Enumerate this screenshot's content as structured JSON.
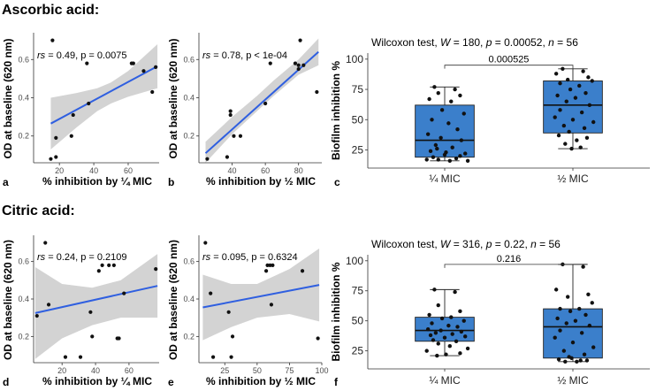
{
  "sections": [
    {
      "title": "Ascorbic acid:"
    },
    {
      "title": "Citric acid:"
    }
  ],
  "colors": {
    "line": "#2f5fe0",
    "band": "#d3d3d3",
    "box_fill": "#3b7fcb",
    "point": "#111111",
    "axis": "#333333",
    "tick_text": "#4d4d4d"
  },
  "chart_data": [
    {
      "id": "a",
      "type": "scatter",
      "panel_label": "a",
      "xlabel": "% inhibition by ¼ MIC",
      "ylabel": "OD at baseline (620 nm)",
      "xlim": [
        5,
        78
      ],
      "ylim": [
        0.06,
        0.74
      ],
      "xticks": [
        20,
        40,
        60
      ],
      "yticks": [
        0.2,
        0.4,
        0.6
      ],
      "xtick_labels": [
        "20",
        "40",
        "60"
      ],
      "ytick_labels": [
        "0.2",
        "0.4",
        "0.6"
      ],
      "stat_rs": "rs",
      "stat_text": " = 0.49, p = 0.0075",
      "points": [
        [
          15,
          0.08
        ],
        [
          16,
          0.7
        ],
        [
          18,
          0.19
        ],
        [
          18,
          0.09
        ],
        [
          27,
          0.2
        ],
        [
          28,
          0.31
        ],
        [
          36,
          0.58
        ],
        [
          37,
          0.37
        ],
        [
          62,
          0.58
        ],
        [
          63,
          0.58
        ],
        [
          69,
          0.54
        ],
        [
          74,
          0.43
        ],
        [
          76,
          0.56
        ]
      ],
      "fit": {
        "x": [
          15,
          77
        ],
        "y": [
          0.265,
          0.565
        ]
      },
      "band_upper": [
        [
          15,
          0.4
        ],
        [
          30,
          0.425
        ],
        [
          42,
          0.45
        ],
        [
          50,
          0.48
        ],
        [
          60,
          0.54
        ],
        [
          77,
          0.68
        ]
      ],
      "band_lower": [
        [
          15,
          0.13
        ],
        [
          30,
          0.245
        ],
        [
          42,
          0.33
        ],
        [
          50,
          0.37
        ],
        [
          60,
          0.405
        ],
        [
          77,
          0.45
        ]
      ]
    },
    {
      "id": "b",
      "type": "scatter",
      "panel_label": "b",
      "xlabel": "% inhibition by ½ MIC",
      "ylabel": "OD at baseline (620 nm)",
      "xlim": [
        20,
        94
      ],
      "ylim": [
        0.06,
        0.74
      ],
      "xticks": [
        40,
        60,
        80
      ],
      "yticks": [
        0.2,
        0.4,
        0.6
      ],
      "xtick_labels": [
        "40",
        "60",
        "80"
      ],
      "ytick_labels": [
        "0.2",
        "0.4",
        "0.6"
      ],
      "stat_rs": "rs",
      "stat_text": " = 0.78, p < 1e-04",
      "points": [
        [
          25,
          0.08
        ],
        [
          37,
          0.09
        ],
        [
          39,
          0.31
        ],
        [
          39,
          0.33
        ],
        [
          41,
          0.2
        ],
        [
          45,
          0.2
        ],
        [
          60,
          0.37
        ],
        [
          63,
          0.58
        ],
        [
          78,
          0.58
        ],
        [
          80,
          0.57
        ],
        [
          80,
          0.55
        ],
        [
          81,
          0.7
        ],
        [
          83,
          0.57
        ],
        [
          91,
          0.43
        ]
      ],
      "fit": {
        "x": [
          24,
          92
        ],
        "y": [
          0.11,
          0.64
        ]
      },
      "band_upper": [
        [
          24,
          0.17
        ],
        [
          40,
          0.3
        ],
        [
          55,
          0.41
        ],
        [
          65,
          0.49
        ],
        [
          80,
          0.6
        ],
        [
          92,
          0.71
        ]
      ],
      "band_lower": [
        [
          24,
          0.05
        ],
        [
          40,
          0.21
        ],
        [
          55,
          0.33
        ],
        [
          65,
          0.41
        ],
        [
          80,
          0.52
        ],
        [
          92,
          0.57
        ]
      ]
    },
    {
      "id": "c",
      "type": "box",
      "panel_label": "c",
      "ylabel": "Biofilm inhibition %",
      "title_prefix": "Wilcoxon test, ",
      "title_W": "W",
      "title_W_val": " = 180, ",
      "title_p": "p",
      "title_p_val": " = 0.00052, ",
      "title_n": "n",
      "title_n_val": " = 56",
      "categories": [
        "¼ MIC",
        "½ MIC"
      ],
      "ylim": [
        10,
        105
      ],
      "yticks": [
        25,
        50,
        75,
        100
      ],
      "ytick_labels": [
        "25",
        "50",
        "75",
        "100"
      ],
      "boxes": [
        {
          "min": 16,
          "q1": 19,
          "median": 33,
          "q3": 62,
          "max": 77
        },
        {
          "min": 26,
          "q1": 39,
          "median": 62,
          "q3": 82,
          "max": 92
        }
      ],
      "bracket_label": "0.000525",
      "bracket_y": 95,
      "points": [
        [
          [
            0.92,
            77
          ],
          [
            1.08,
            75
          ],
          [
            0.95,
            72
          ],
          [
            1.12,
            70
          ],
          [
            0.88,
            67
          ],
          [
            1.05,
            65
          ],
          [
            0.98,
            58
          ],
          [
            1.15,
            55
          ],
          [
            0.9,
            50
          ],
          [
            1.03,
            47
          ],
          [
            1.1,
            42
          ],
          [
            0.87,
            38
          ],
          [
            0.97,
            35
          ],
          [
            1.13,
            33
          ],
          [
            0.93,
            29
          ],
          [
            1.06,
            27
          ],
          [
            0.89,
            24
          ],
          [
            1.16,
            22
          ],
          [
            1.0,
            21
          ],
          [
            0.91,
            19
          ],
          [
            1.09,
            18
          ],
          [
            0.95,
            17
          ],
          [
            1.04,
            16
          ],
          [
            1.18,
            16
          ],
          [
            0.86,
            17
          ],
          [
            1.12,
            20
          ],
          [
            1.01,
            23
          ],
          [
            0.94,
            26
          ]
        ],
        [
          [
            1.92,
            92
          ],
          [
            2.08,
            90
          ],
          [
            1.87,
            88
          ],
          [
            2.12,
            85
          ],
          [
            1.96,
            83
          ],
          [
            2.15,
            82
          ],
          [
            1.9,
            80
          ],
          [
            2.05,
            78
          ],
          [
            1.98,
            75
          ],
          [
            2.1,
            72
          ],
          [
            1.88,
            70
          ],
          [
            2.02,
            68
          ],
          [
            1.95,
            65
          ],
          [
            2.13,
            62
          ],
          [
            1.9,
            58
          ],
          [
            2.07,
            56
          ],
          [
            1.86,
            52
          ],
          [
            2.0,
            50
          ],
          [
            2.16,
            48
          ],
          [
            1.93,
            45
          ],
          [
            2.09,
            43
          ],
          [
            1.97,
            40
          ],
          [
            1.89,
            37
          ],
          [
            2.11,
            35
          ],
          [
            2.03,
            33
          ],
          [
            1.94,
            30
          ],
          [
            2.06,
            27
          ],
          [
            1.99,
            26
          ]
        ]
      ]
    },
    {
      "id": "d",
      "type": "scatter",
      "panel_label": "d",
      "xlabel": "% inhibition by ¼ MIC",
      "ylabel": "OD at baseline (620 nm)",
      "xlim": [
        3,
        78
      ],
      "ylim": [
        0.06,
        0.74
      ],
      "xticks": [
        20,
        40,
        60
      ],
      "yticks": [
        0.2,
        0.4,
        0.6
      ],
      "xtick_labels": [
        "20",
        "40",
        "60"
      ],
      "ytick_labels": [
        "0.2",
        "0.4",
        "0.6"
      ],
      "stat_rs": "rs",
      "stat_text": " = 0.24, p = 0.2109",
      "points": [
        [
          5,
          0.31
        ],
        [
          10,
          0.7
        ],
        [
          12,
          0.37
        ],
        [
          22,
          0.09
        ],
        [
          31,
          0.09
        ],
        [
          37,
          0.33
        ],
        [
          38,
          0.2
        ],
        [
          42,
          0.55
        ],
        [
          44,
          0.58
        ],
        [
          48,
          0.58
        ],
        [
          51,
          0.58
        ],
        [
          53,
          0.19
        ],
        [
          54,
          0.19
        ],
        [
          57,
          0.43
        ],
        [
          76,
          0.56
        ]
      ],
      "fit": {
        "x": [
          4,
          77
        ],
        "y": [
          0.325,
          0.47
        ]
      },
      "band_upper": [
        [
          4,
          0.57
        ],
        [
          20,
          0.48
        ],
        [
          38,
          0.46
        ],
        [
          55,
          0.5
        ],
        [
          77,
          0.64
        ]
      ],
      "band_lower": [
        [
          4,
          0.08
        ],
        [
          20,
          0.19
        ],
        [
          38,
          0.26
        ],
        [
          55,
          0.3
        ],
        [
          77,
          0.3
        ]
      ]
    },
    {
      "id": "e",
      "type": "scatter",
      "panel_label": "e",
      "xlabel": "% inhibition by ½ MIC",
      "ylabel": "OD at baseline (620 nm)",
      "xlim": [
        5,
        100
      ],
      "ylim": [
        0.06,
        0.74
      ],
      "xticks": [
        25,
        50,
        75,
        100
      ],
      "yticks": [
        0.2,
        0.4,
        0.6
      ],
      "xtick_labels": [
        "25",
        "50",
        "75",
        "100"
      ],
      "ytick_labels": [
        "0.2",
        "0.4",
        "0.6"
      ],
      "stat_rs": "rs",
      "stat_text": " = 0.095, p = 0.6324",
      "points": [
        [
          10,
          0.7
        ],
        [
          14,
          0.43
        ],
        [
          16,
          0.09
        ],
        [
          28,
          0.33
        ],
        [
          30,
          0.09
        ],
        [
          31,
          0.2
        ],
        [
          57,
          0.55
        ],
        [
          58,
          0.58
        ],
        [
          60,
          0.58
        ],
        [
          61,
          0.37
        ],
        [
          62,
          0.58
        ],
        [
          85,
          0.55
        ],
        [
          97,
          0.19
        ]
      ],
      "fit": {
        "x": [
          8,
          98
        ],
        "y": [
          0.355,
          0.475
        ]
      },
      "band_upper": [
        [
          8,
          0.53
        ],
        [
          30,
          0.48
        ],
        [
          50,
          0.48
        ],
        [
          75,
          0.56
        ],
        [
          98,
          0.67
        ]
      ],
      "band_lower": [
        [
          8,
          0.18
        ],
        [
          30,
          0.25
        ],
        [
          50,
          0.3
        ],
        [
          75,
          0.32
        ],
        [
          98,
          0.28
        ]
      ]
    },
    {
      "id": "f",
      "type": "box",
      "panel_label": "f",
      "ylabel": "Biofilm inhibition %",
      "title_prefix": "Wilcoxon test, ",
      "title_W": "W",
      "title_W_val": " = 316, ",
      "title_p": "p",
      "title_p_val": " = 0.22, ",
      "title_n": "n",
      "title_n_val": " = 56",
      "categories": [
        "¼ MIC",
        "½ MIC"
      ],
      "ylim": [
        10,
        105
      ],
      "yticks": [
        25,
        50,
        75,
        100
      ],
      "ytick_labels": [
        "25",
        "50",
        "75",
        "100"
      ],
      "boxes": [
        {
          "min": 21,
          "q1": 33,
          "median": 42,
          "q3": 53,
          "max": 76
        },
        {
          "min": 16,
          "q1": 19,
          "median": 45,
          "q3": 60,
          "max": 97
        }
      ],
      "bracket_label": "0.216",
      "bracket_y": 97,
      "points": [
        [
          [
            0.92,
            76
          ],
          [
            1.08,
            74
          ],
          [
            0.95,
            63
          ],
          [
            1.12,
            58
          ],
          [
            0.88,
            55
          ],
          [
            1.05,
            53
          ],
          [
            0.98,
            52
          ],
          [
            1.15,
            50
          ],
          [
            0.9,
            48
          ],
          [
            1.03,
            46
          ],
          [
            1.1,
            45
          ],
          [
            0.87,
            43
          ],
          [
            0.97,
            42
          ],
          [
            1.13,
            41
          ],
          [
            0.93,
            40
          ],
          [
            1.06,
            39
          ],
          [
            0.89,
            38
          ],
          [
            1.16,
            37
          ],
          [
            1.0,
            36
          ],
          [
            0.91,
            34
          ],
          [
            1.09,
            33
          ],
          [
            0.95,
            31
          ],
          [
            1.04,
            29
          ],
          [
            1.18,
            27
          ],
          [
            0.86,
            25
          ],
          [
            1.12,
            23
          ],
          [
            1.01,
            22
          ],
          [
            0.94,
            21
          ]
        ],
        [
          [
            1.92,
            97
          ],
          [
            2.08,
            95
          ],
          [
            1.87,
            76
          ],
          [
            2.12,
            72
          ],
          [
            1.96,
            70
          ],
          [
            2.15,
            65
          ],
          [
            1.9,
            60
          ],
          [
            2.05,
            60
          ],
          [
            1.98,
            58
          ],
          [
            2.1,
            55
          ],
          [
            1.88,
            52
          ],
          [
            2.02,
            50
          ],
          [
            1.95,
            48
          ],
          [
            2.13,
            46
          ],
          [
            1.9,
            42
          ],
          [
            2.07,
            40
          ],
          [
            1.86,
            36
          ],
          [
            2.0,
            32
          ],
          [
            2.16,
            28
          ],
          [
            1.93,
            25
          ],
          [
            2.09,
            22
          ],
          [
            1.97,
            20
          ],
          [
            1.89,
            18
          ],
          [
            2.11,
            17
          ],
          [
            2.03,
            16
          ],
          [
            1.94,
            16
          ],
          [
            2.06,
            17
          ],
          [
            1.99,
            19
          ]
        ]
      ]
    }
  ]
}
